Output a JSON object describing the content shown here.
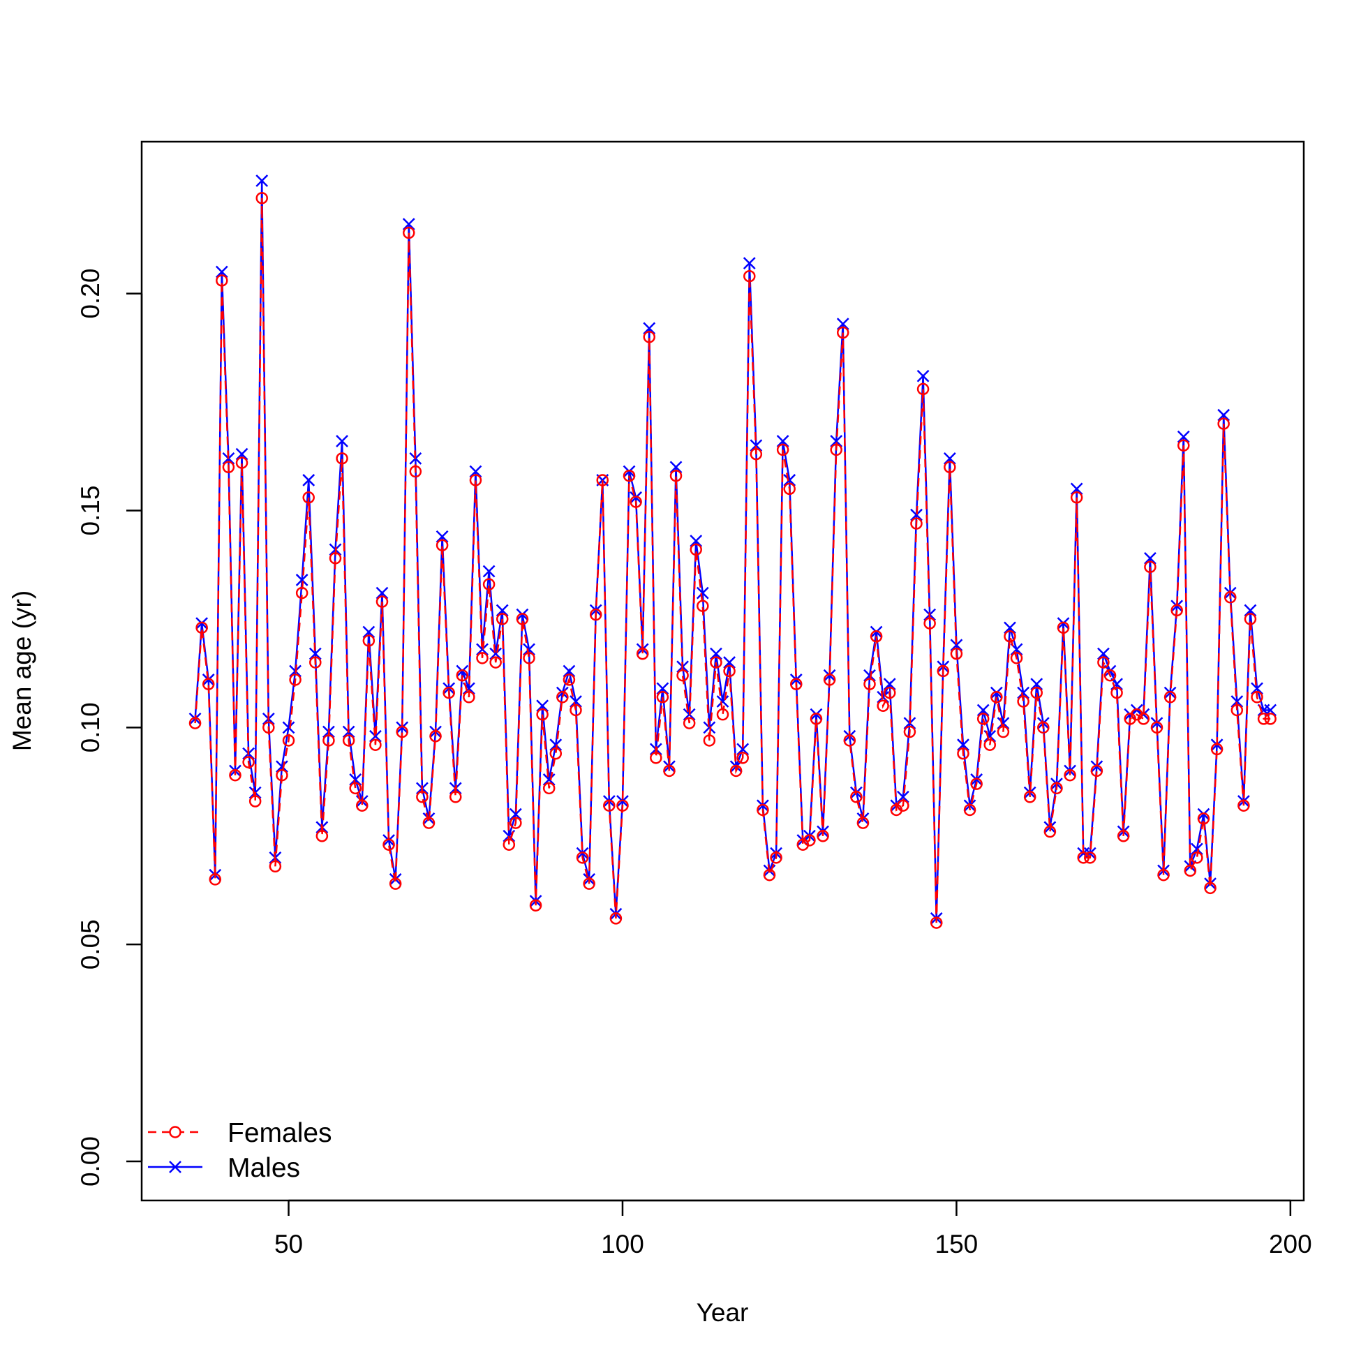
{
  "chart_data": {
    "type": "line",
    "title": "",
    "xlabel": "Year",
    "ylabel": "Mean age (yr)",
    "xlim": [
      28,
      202
    ],
    "ylim": [
      -0.009,
      0.235
    ],
    "xticks": [
      50,
      100,
      150,
      200
    ],
    "yticks": [
      0.0,
      0.05,
      0.1,
      0.15,
      0.2
    ],
    "ytick_labels": [
      "0.00",
      "0.05",
      "0.10",
      "0.15",
      "0.20"
    ],
    "grid": false,
    "legend_position": "bottom-left",
    "x_start": 36,
    "series": [
      {
        "name": "Females",
        "color": "#ff0000",
        "line_style": "dashed",
        "marker": "circle",
        "values": [
          0.101,
          0.123,
          0.11,
          0.065,
          0.203,
          0.16,
          0.089,
          0.161,
          0.092,
          0.083,
          0.222,
          0.1,
          0.068,
          0.089,
          0.097,
          0.111,
          0.131,
          0.153,
          0.115,
          0.075,
          0.097,
          0.139,
          0.162,
          0.097,
          0.086,
          0.082,
          0.12,
          0.096,
          0.129,
          0.073,
          0.064,
          0.099,
          0.214,
          0.159,
          0.084,
          0.078,
          0.098,
          0.142,
          0.108,
          0.084,
          0.112,
          0.107,
          0.157,
          0.116,
          0.133,
          0.115,
          0.125,
          0.073,
          0.078,
          0.125,
          0.116,
          0.059,
          0.103,
          0.086,
          0.094,
          0.107,
          0.111,
          0.104,
          0.07,
          0.064,
          0.126,
          0.157,
          0.082,
          0.056,
          0.082,
          0.158,
          0.152,
          0.117,
          0.19,
          0.093,
          0.107,
          0.09,
          0.158,
          0.112,
          0.101,
          0.141,
          0.128,
          0.097,
          0.115,
          0.103,
          0.113,
          0.09,
          0.093,
          0.204,
          0.163,
          0.081,
          0.066,
          0.07,
          0.164,
          0.155,
          0.11,
          0.073,
          0.074,
          0.102,
          0.075,
          0.111,
          0.164,
          0.191,
          0.097,
          0.084,
          0.078,
          0.11,
          0.121,
          0.105,
          0.108,
          0.081,
          0.082,
          0.099,
          0.147,
          0.178,
          0.124,
          0.055,
          0.113,
          0.16,
          0.117,
          0.094,
          0.081,
          0.087,
          0.102,
          0.096,
          0.107,
          0.099,
          0.121,
          0.116,
          0.106,
          0.084,
          0.108,
          0.1,
          0.076,
          0.086,
          0.123,
          0.089,
          0.153,
          0.07,
          0.07,
          0.09,
          0.115,
          0.112,
          0.108,
          0.075,
          0.102,
          0.103,
          0.102,
          0.137,
          0.1,
          0.066,
          0.107,
          0.127,
          0.165,
          0.067,
          0.07,
          0.079,
          0.063,
          0.095,
          0.17,
          0.13,
          0.104,
          0.082,
          0.125,
          0.107,
          0.102,
          0.102
        ]
      },
      {
        "name": "Males",
        "color": "#0000ff",
        "line_style": "solid",
        "marker": "x",
        "values": [
          0.102,
          0.124,
          0.111,
          0.066,
          0.205,
          0.162,
          0.09,
          0.163,
          0.094,
          0.085,
          0.226,
          0.102,
          0.07,
          0.091,
          0.1,
          0.113,
          0.134,
          0.157,
          0.117,
          0.077,
          0.099,
          0.141,
          0.166,
          0.099,
          0.088,
          0.083,
          0.122,
          0.098,
          0.131,
          0.074,
          0.065,
          0.1,
          0.216,
          0.162,
          0.086,
          0.079,
          0.099,
          0.144,
          0.109,
          0.086,
          0.113,
          0.109,
          0.159,
          0.118,
          0.136,
          0.117,
          0.127,
          0.075,
          0.08,
          0.126,
          0.118,
          0.06,
          0.105,
          0.088,
          0.096,
          0.108,
          0.113,
          0.106,
          0.071,
          0.065,
          0.127,
          0.157,
          0.083,
          0.057,
          0.083,
          0.159,
          0.153,
          0.118,
          0.192,
          0.095,
          0.109,
          0.091,
          0.16,
          0.114,
          0.103,
          0.143,
          0.131,
          0.1,
          0.117,
          0.106,
          0.115,
          0.091,
          0.095,
          0.207,
          0.165,
          0.082,
          0.067,
          0.071,
          0.166,
          0.157,
          0.111,
          0.074,
          0.075,
          0.103,
          0.076,
          0.112,
          0.166,
          0.193,
          0.098,
          0.085,
          0.079,
          0.112,
          0.122,
          0.107,
          0.11,
          0.082,
          0.084,
          0.101,
          0.149,
          0.181,
          0.126,
          0.056,
          0.114,
          0.162,
          0.119,
          0.096,
          0.082,
          0.088,
          0.104,
          0.098,
          0.108,
          0.101,
          0.123,
          0.118,
          0.108,
          0.085,
          0.11,
          0.101,
          0.077,
          0.087,
          0.124,
          0.09,
          0.155,
          0.071,
          0.071,
          0.091,
          0.117,
          0.113,
          0.11,
          0.076,
          0.103,
          0.104,
          0.103,
          0.139,
          0.101,
          0.067,
          0.108,
          0.128,
          0.167,
          0.068,
          0.072,
          0.08,
          0.064,
          0.096,
          0.172,
          0.131,
          0.106,
          0.083,
          0.127,
          0.109,
          0.104,
          0.104
        ]
      }
    ]
  }
}
